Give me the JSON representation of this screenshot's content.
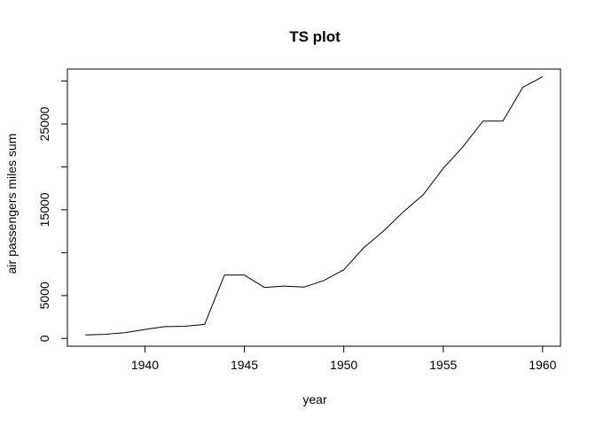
{
  "chart_data": {
    "type": "line",
    "title": "TS plot",
    "xlabel": "year",
    "ylabel": "air passengers miles sum",
    "xlim": [
      1936.1,
      1960.9
    ],
    "ylim": [
      -900,
      31400
    ],
    "x_ticks": [
      1940,
      1945,
      1950,
      1955,
      1960
    ],
    "y_ticks": [
      0,
      5000,
      15000,
      25000
    ],
    "grid": false,
    "series": [
      {
        "x": [
          1937,
          1938,
          1939,
          1940,
          1941,
          1942,
          1943,
          1944,
          1945,
          1946,
          1947,
          1948,
          1949,
          1950,
          1951,
          1952,
          1953,
          1954,
          1955,
          1956,
          1957,
          1958,
          1959,
          1960
        ],
        "values": [
          412,
          480,
          683,
          1052,
          1385,
          1418,
          1634,
          7400,
          7400,
          5948,
          6109,
          5981,
          6753,
          8003,
          10566,
          12528,
          14760,
          16769,
          19819,
          22362,
          25340,
          25343,
          29269,
          30514
        ]
      }
    ]
  }
}
